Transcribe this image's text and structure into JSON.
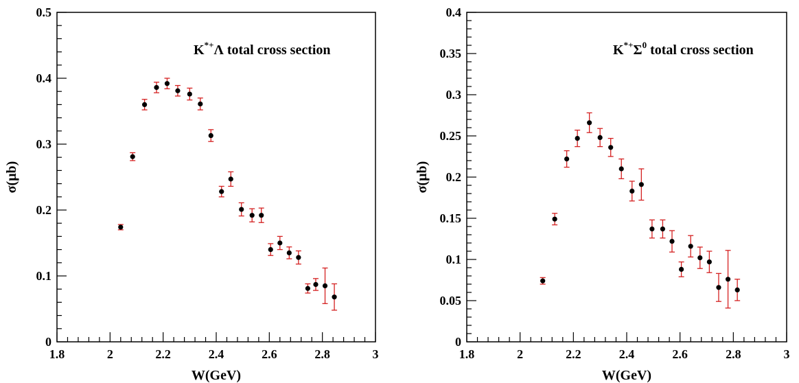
{
  "chart_data": [
    {
      "type": "scatter",
      "title": {
        "main": "K",
        "sup": "*+",
        "rest": "Λ total cross section"
      },
      "xlabel": "W(GeV)",
      "ylabel": "σ(μb)",
      "xlim": [
        1.8,
        3.0
      ],
      "ylim": [
        0,
        0.5
      ],
      "x_ticks": [
        "1.8",
        "2",
        "2.2",
        "2.4",
        "2.6",
        "2.8",
        "3"
      ],
      "y_ticks": [
        "0",
        "0.1",
        "0.2",
        "0.3",
        "0.4",
        "0.5"
      ],
      "points": [
        {
          "x": 2.04,
          "y": 0.174,
          "err": 0.004
        },
        {
          "x": 2.085,
          "y": 0.281,
          "err": 0.006
        },
        {
          "x": 2.13,
          "y": 0.36,
          "err": 0.008
        },
        {
          "x": 2.175,
          "y": 0.386,
          "err": 0.008
        },
        {
          "x": 2.215,
          "y": 0.392,
          "err": 0.008
        },
        {
          "x": 2.255,
          "y": 0.381,
          "err": 0.008
        },
        {
          "x": 2.3,
          "y": 0.376,
          "err": 0.009
        },
        {
          "x": 2.34,
          "y": 0.361,
          "err": 0.009
        },
        {
          "x": 2.38,
          "y": 0.313,
          "err": 0.009
        },
        {
          "x": 2.42,
          "y": 0.228,
          "err": 0.008
        },
        {
          "x": 2.455,
          "y": 0.247,
          "err": 0.011
        },
        {
          "x": 2.495,
          "y": 0.201,
          "err": 0.01
        },
        {
          "x": 2.535,
          "y": 0.192,
          "err": 0.01
        },
        {
          "x": 2.57,
          "y": 0.192,
          "err": 0.011
        },
        {
          "x": 2.605,
          "y": 0.14,
          "err": 0.009
        },
        {
          "x": 2.64,
          "y": 0.15,
          "err": 0.01
        },
        {
          "x": 2.675,
          "y": 0.135,
          "err": 0.009
        },
        {
          "x": 2.71,
          "y": 0.128,
          "err": 0.01
        },
        {
          "x": 2.745,
          "y": 0.081,
          "err": 0.007
        },
        {
          "x": 2.775,
          "y": 0.087,
          "err": 0.009
        },
        {
          "x": 2.81,
          "y": 0.085,
          "err": 0.027
        },
        {
          "x": 2.845,
          "y": 0.068,
          "err": 0.02
        }
      ],
      "colors": {
        "marker": "#000000",
        "error_bar": "#d42020"
      }
    },
    {
      "type": "scatter",
      "title": {
        "main": "K",
        "sup": "*+",
        "rest": "Σ",
        "sup2": "0",
        "rest2": " total cross section"
      },
      "xlabel": "W(GeV)",
      "ylabel": "σ(μb)",
      "xlim": [
        1.8,
        3.0
      ],
      "ylim": [
        0,
        0.4
      ],
      "x_ticks": [
        "1.8",
        "2",
        "2.2",
        "2.4",
        "2.6",
        "2.8",
        "3"
      ],
      "y_ticks": [
        "0",
        "0.05",
        "0.1",
        "0.15",
        "0.2",
        "0.25",
        "0.3",
        "0.35",
        "0.4"
      ],
      "points": [
        {
          "x": 2.085,
          "y": 0.074,
          "err": 0.004
        },
        {
          "x": 2.13,
          "y": 0.149,
          "err": 0.007
        },
        {
          "x": 2.175,
          "y": 0.222,
          "err": 0.01
        },
        {
          "x": 2.215,
          "y": 0.247,
          "err": 0.01
        },
        {
          "x": 2.26,
          "y": 0.266,
          "err": 0.012
        },
        {
          "x": 2.3,
          "y": 0.248,
          "err": 0.011
        },
        {
          "x": 2.34,
          "y": 0.236,
          "err": 0.011
        },
        {
          "x": 2.38,
          "y": 0.21,
          "err": 0.012
        },
        {
          "x": 2.42,
          "y": 0.183,
          "err": 0.012
        },
        {
          "x": 2.455,
          "y": 0.191,
          "err": 0.019
        },
        {
          "x": 2.495,
          "y": 0.137,
          "err": 0.011
        },
        {
          "x": 2.535,
          "y": 0.137,
          "err": 0.011
        },
        {
          "x": 2.57,
          "y": 0.122,
          "err": 0.013
        },
        {
          "x": 2.605,
          "y": 0.088,
          "err": 0.009
        },
        {
          "x": 2.64,
          "y": 0.116,
          "err": 0.013
        },
        {
          "x": 2.675,
          "y": 0.102,
          "err": 0.013
        },
        {
          "x": 2.71,
          "y": 0.097,
          "err": 0.013
        },
        {
          "x": 2.745,
          "y": 0.066,
          "err": 0.017
        },
        {
          "x": 2.78,
          "y": 0.076,
          "err": 0.035
        },
        {
          "x": 2.815,
          "y": 0.063,
          "err": 0.013
        }
      ],
      "colors": {
        "marker": "#000000",
        "error_bar": "#d42020"
      }
    }
  ]
}
